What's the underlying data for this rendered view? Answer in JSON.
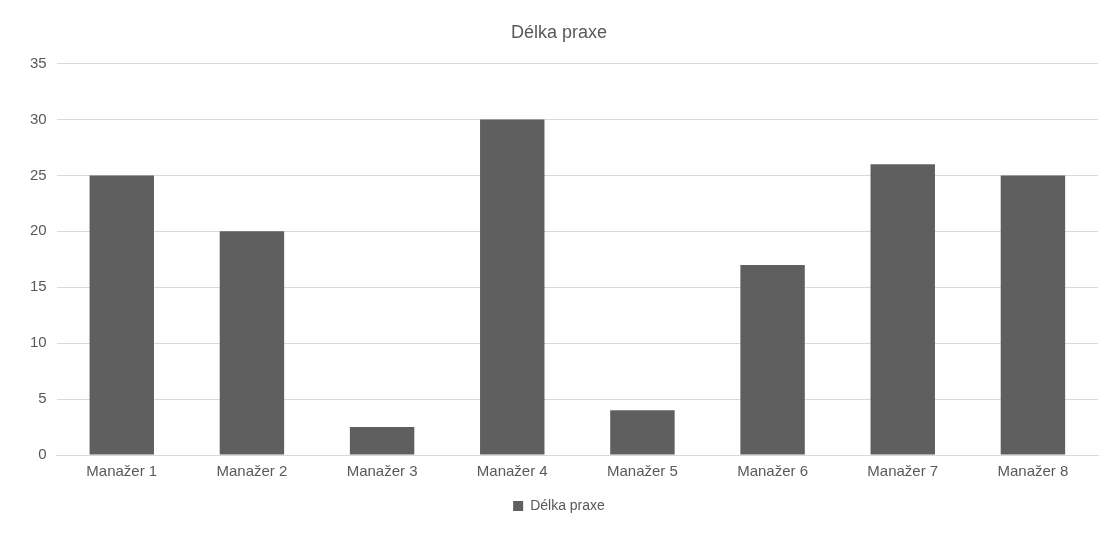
{
  "chart_data": {
    "type": "bar",
    "title": "Délka praxe",
    "categories": [
      "Manažer 1",
      "Manažer 2",
      "Manažer 3",
      "Manažer 4",
      "Manažer 5",
      "Manažer 6",
      "Manažer 7",
      "Manažer 8"
    ],
    "series": [
      {
        "name": "Délka praxe",
        "color": "#5f5f5f",
        "values": [
          25,
          20,
          2.5,
          30,
          4,
          17,
          26,
          25
        ]
      }
    ],
    "ylim": [
      0,
      35
    ],
    "yticks": [
      0,
      5,
      10,
      15,
      20,
      25,
      30,
      35
    ],
    "grid": "y",
    "legend": "bottom"
  }
}
